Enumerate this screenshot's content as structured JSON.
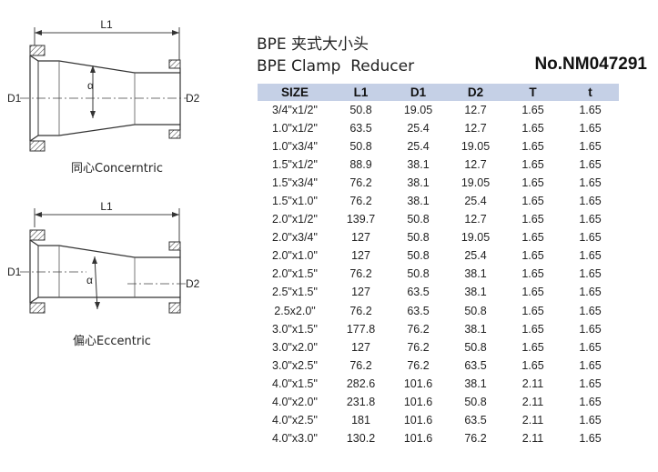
{
  "title_cn": "BPE 夹式大小头",
  "title_en": "BPE Clamp  Reducer",
  "model_no": "No.NM047291",
  "concentric": {
    "caption": "同心Concerntric",
    "dim_length": "L1",
    "dim_inlet": "D1",
    "dim_outlet": "D2",
    "angle_symbol": "α"
  },
  "eccentric": {
    "caption": "偏心Eccentric",
    "dim_length": "L1",
    "dim_inlet": "D1",
    "dim_outlet": "D2",
    "angle_symbol": "α"
  },
  "table": {
    "headers": [
      "SIZE",
      "L1",
      "D1",
      "D2",
      "T",
      "t"
    ],
    "rows": [
      [
        "3/4\"x1/2\"",
        "50.8",
        "19.05",
        "12.7",
        "1.65",
        "1.65"
      ],
      [
        "1.0\"x1/2\"",
        "63.5",
        "25.4",
        "12.7",
        "1.65",
        "1.65"
      ],
      [
        "1.0\"x3/4\"",
        "50.8",
        "25.4",
        "19.05",
        "1.65",
        "1.65"
      ],
      [
        "1.5\"x1/2\"",
        "88.9",
        "38.1",
        "12.7",
        "1.65",
        "1.65"
      ],
      [
        "1.5\"x3/4\"",
        "76.2",
        "38.1",
        "19.05",
        "1.65",
        "1.65"
      ],
      [
        "1.5\"x1.0\"",
        "76.2",
        "38.1",
        "25.4",
        "1.65",
        "1.65"
      ],
      [
        "2.0\"x1/2\"",
        "139.7",
        "50.8",
        "12.7",
        "1.65",
        "1.65"
      ],
      [
        "2.0\"x3/4\"",
        "127",
        "50.8",
        "19.05",
        "1.65",
        "1.65"
      ],
      [
        "2.0\"x1.0\"",
        "127",
        "50.8",
        "25.4",
        "1.65",
        "1.65"
      ],
      [
        "2.0\"x1.5\"",
        "76.2",
        "50.8",
        "38.1",
        "1.65",
        "1.65"
      ],
      [
        "2.5\"x1.5\"",
        "127",
        "63.5",
        "38.1",
        "1.65",
        "1.65"
      ],
      [
        "2.5x2.0\"",
        "76.2",
        "63.5",
        "50.8",
        "1.65",
        "1.65"
      ],
      [
        "3.0\"x1.5\"",
        "177.8",
        "76.2",
        "38.1",
        "1.65",
        "1.65"
      ],
      [
        "3.0\"x2.0\"",
        "127",
        "76.2",
        "50.8",
        "1.65",
        "1.65"
      ],
      [
        "3.0\"x2.5\"",
        "76.2",
        "76.2",
        "63.5",
        "1.65",
        "1.65"
      ],
      [
        "4.0\"x1.5\"",
        "282.6",
        "101.6",
        "38.1",
        "2.11",
        "1.65"
      ],
      [
        "4.0\"x2.0\"",
        "231.8",
        "101.6",
        "50.8",
        "2.11",
        "1.65"
      ],
      [
        "4.0\"x2.5\"",
        "181",
        "101.6",
        "63.5",
        "2.11",
        "1.65"
      ],
      [
        "4.0\"x3.0\"",
        "130.2",
        "101.6",
        "76.2",
        "2.11",
        "1.65"
      ]
    ]
  }
}
